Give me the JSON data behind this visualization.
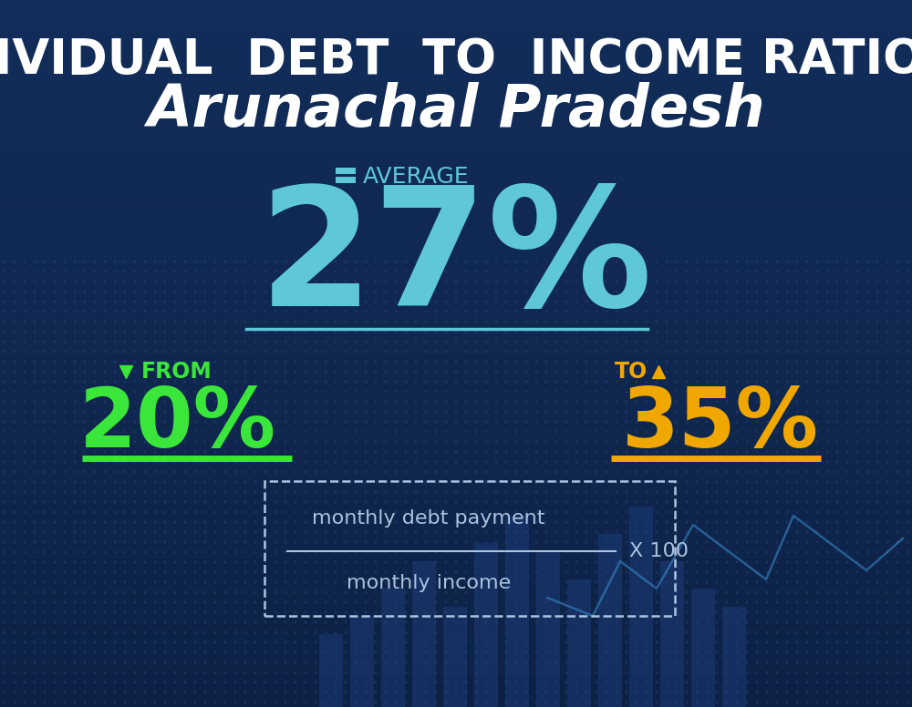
{
  "bg_color_top": "#0d2145",
  "bg_color_bottom": "#122d5a",
  "title_line1": "INDIVIDUAL  DEBT  TO  INCOME RATIO  IN",
  "title_line2": "Arunachal Pradesh",
  "title_line1_color": "#ffffff",
  "title_line2_color": "#ffffff",
  "title_line1_fontsize": 38,
  "title_line2_fontsize": 46,
  "avg_label": "AVERAGE",
  "avg_icon_color": "#5fc8d8",
  "avg_value": "27%",
  "avg_value_color": "#5fc8d8",
  "avg_value_fontsize": 130,
  "avg_label_fontsize": 18,
  "separator_color": "#5fc8d8",
  "from_label": "FROM",
  "from_value": "20%",
  "from_value_color": "#39e639",
  "from_label_color": "#39e639",
  "from_underline_color": "#39e639",
  "to_label": "TO",
  "to_value": "35%",
  "to_value_color": "#f0a800",
  "to_label_color": "#f0a800",
  "to_underline_color": "#f0a800",
  "from_fontsize": 65,
  "to_fontsize": 65,
  "formula_text1": "monthly debt payment",
  "formula_text2": "monthly income",
  "formula_multiplier": "X 100",
  "formula_text_color": "#aac4e0",
  "dot_border_color": "#aac4e0",
  "bar_color": "#1a4a8a",
  "bar_dot_color": "#1e3f70"
}
